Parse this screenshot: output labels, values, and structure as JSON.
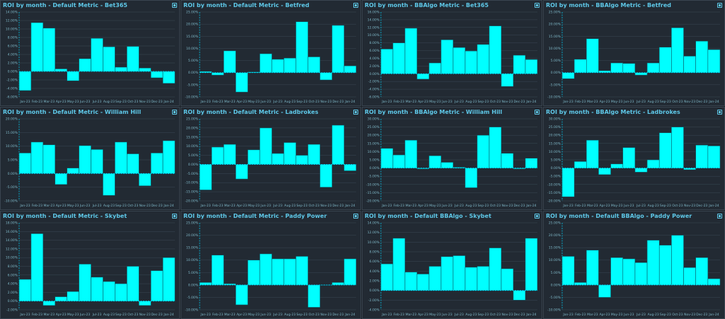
{
  "colors": {
    "bar_fill": "#00ffff",
    "bar_stroke": "#0a5d6a",
    "grid": "#3a4855",
    "zero_line": "#00d8ff",
    "title": "#5ec8e8",
    "tick": "#7fb8c8",
    "panel_bg": "#222a33",
    "page_bg": "#1b2128"
  },
  "chart_data": [
    {
      "type": "bar",
      "title": "ROI by month - Default Metric - Bet365",
      "categories": [
        "Jan-23",
        "Feb-23",
        "Mar-23",
        "Apr-23",
        "May-23",
        "Jun-23",
        "Jul-23",
        "Aug-23",
        "Sep-23",
        "Oct-23",
        "Nov-23",
        "Dec-23",
        "Jan-24"
      ],
      "values": [
        -4.5,
        11.5,
        10.2,
        0.6,
        -2.2,
        3.0,
        7.8,
        5.8,
        1.0,
        5.9,
        0.8,
        -1.5,
        -2.8
      ],
      "ylim": [
        -6,
        14
      ],
      "yticks": [
        "14.00%",
        "12.00%",
        "10.00%",
        "8.00%",
        "6.00%",
        "4.00%",
        "2.00%",
        "0.00%",
        "-2.00%",
        "-4.00%",
        "-6.00%"
      ]
    },
    {
      "type": "bar",
      "title": "ROI by month - Default Metric - Betfred",
      "categories": [
        "Jan-23",
        "Feb-23",
        "Mar-23",
        "Apr-23",
        "May-23",
        "Jun-23",
        "Jul-23",
        "Aug-23",
        "Sep-23",
        "Oct-23",
        "Nov-23",
        "Dec-23",
        "Jan-24"
      ],
      "values": [
        0.5,
        -1.0,
        9.0,
        -8.0,
        0.3,
        7.8,
        5.5,
        6.0,
        21.0,
        6.5,
        -3.0,
        19.5,
        2.8
      ],
      "ylim": [
        -10,
        25
      ],
      "yticks": [
        "25.00%",
        "20.00%",
        "15.00%",
        "10.00%",
        "5.00%",
        "0.00%",
        "-5.00%",
        "-10.00%"
      ]
    },
    {
      "type": "bar",
      "title": "ROI by month - BBAlgo Metric - Bet365",
      "categories": [
        "Jan-23",
        "Feb-23",
        "Mar-23",
        "Apr-23",
        "May-23",
        "Jun-23",
        "Jul-23",
        "Aug-23",
        "Sep-23",
        "Oct-23",
        "Nov-23",
        "Dec-23",
        "Jan-24"
      ],
      "values": [
        6.4,
        8.0,
        11.8,
        -1.4,
        2.8,
        8.8,
        6.8,
        5.9,
        7.6,
        12.4,
        -3.3,
        4.8,
        3.7
      ],
      "ylim": [
        -6,
        16
      ],
      "yticks": [
        "16.00%",
        "14.00%",
        "12.00%",
        "10.00%",
        "8.00%",
        "6.00%",
        "4.00%",
        "2.00%",
        "0.00%",
        "-2.00%",
        "-4.00%",
        "-6.00%"
      ]
    },
    {
      "type": "bar",
      "title": "ROI by month - BBAlgo Metric - Betfred",
      "categories": [
        "Jan-23",
        "Feb-23",
        "Mar-23",
        "Apr-23",
        "May-23",
        "Jun-23",
        "Jul-23",
        "Aug-23",
        "Sep-23",
        "Oct-23",
        "Nov-23",
        "Dec-23",
        "Jan-24"
      ],
      "values": [
        -2.5,
        5.5,
        14.0,
        0.8,
        4.0,
        3.8,
        -1.0,
        4.0,
        10.5,
        18.5,
        6.8,
        13.0,
        9.5
      ],
      "ylim": [
        -10,
        25
      ],
      "yticks": [
        "25.00%",
        "20.00%",
        "15.00%",
        "10.00%",
        "5.00%",
        "0.00%",
        "-5.00%",
        "-10.00%"
      ]
    },
    {
      "type": "bar",
      "title": "ROI by month - Default Metric - William Hill",
      "categories": [
        "Jan-23",
        "Feb-23",
        "Mar-23",
        "Apr-23",
        "May-23",
        "Jun-23",
        "Jul-23",
        "Aug-23",
        "Sep-23",
        "Oct-23",
        "Nov-23",
        "Dec-23",
        "Jan-24"
      ],
      "values": [
        7.5,
        11.5,
        10.5,
        -4.0,
        2.0,
        10.2,
        8.8,
        -8.0,
        11.5,
        7.2,
        -4.5,
        7.5,
        12.0
      ],
      "ylim": [
        -10,
        20
      ],
      "yticks": [
        "20.00%",
        "15.00%",
        "10.00%",
        "5.00%",
        "0.00%",
        "-5.00%",
        "-10.00%"
      ]
    },
    {
      "type": "bar",
      "title": "ROI by month - Default Metric - Ladbrokes",
      "categories": [
        "Jan-23",
        "Feb-23",
        "Mar-23",
        "Apr-23",
        "May-23",
        "Jun-23",
        "Jul-23",
        "Aug-23",
        "Sep-23",
        "Oct-23",
        "Nov-23",
        "Dec-23",
        "Jan-24"
      ],
      "values": [
        -14.0,
        9.5,
        11.0,
        -8.0,
        8.0,
        20.0,
        6.0,
        12.0,
        5.0,
        11.0,
        -12.5,
        21.5,
        -3.5
      ],
      "ylim": [
        -20,
        25
      ],
      "yticks": [
        "25.00%",
        "20.00%",
        "15.00%",
        "10.00%",
        "5.00%",
        "0.00%",
        "-5.00%",
        "-10.00%",
        "-15.00%",
        "-20.00%"
      ]
    },
    {
      "type": "bar",
      "title": "ROI by month - BBAlgo Metric - William Hill",
      "categories": [
        "Jan-23",
        "Feb-23",
        "Mar-23",
        "Apr-23",
        "May-23",
        "Jun-23",
        "Jul-23",
        "Aug-23",
        "Sep-23",
        "Oct-23",
        "Nov-23",
        "Dec-23",
        "Jan-24"
      ],
      "values": [
        12.0,
        8.0,
        17.0,
        -0.5,
        7.5,
        3.5,
        0.5,
        -12.0,
        20.0,
        25.0,
        9.0,
        -0.5,
        6.0
      ],
      "ylim": [
        -20,
        30
      ],
      "yticks": [
        "30.00%",
        "25.00%",
        "20.00%",
        "15.00%",
        "10.00%",
        "5.00%",
        "0.00%",
        "-5.00%",
        "-10.00%",
        "-15.00%",
        "-20.00%"
      ]
    },
    {
      "type": "bar",
      "title": "ROI by month - BBAlgo Metric - Ladbrokes",
      "categories": [
        "Jan-23",
        "Feb-23",
        "Mar-23",
        "Apr-23",
        "May-23",
        "Jun-23",
        "Jul-23",
        "Aug-23",
        "Sep-23",
        "Oct-23",
        "Nov-23",
        "Dec-23",
        "Jan-24"
      ],
      "values": [
        -17.5,
        4.0,
        17.0,
        -4.0,
        2.5,
        12.5,
        -2.5,
        5.0,
        21.5,
        25.0,
        -1.0,
        14.0,
        13.5
      ],
      "ylim": [
        -20,
        30
      ],
      "yticks": [
        "30.00%",
        "25.00%",
        "20.00%",
        "15.00%",
        "10.00%",
        "5.00%",
        "0.00%",
        "-5.00%",
        "-10.00%",
        "-15.00%",
        "-20.00%"
      ]
    },
    {
      "type": "bar",
      "title": "ROI by month - Default Metric - Skybet",
      "categories": [
        "Jan-23",
        "Feb-23",
        "Mar-23",
        "Apr-23",
        "May-23",
        "Jun-23",
        "Jul-23",
        "Aug-23",
        "Sep-23",
        "Oct-23",
        "Nov-23",
        "Dec-23",
        "Jan-24"
      ],
      "values": [
        5.0,
        15.5,
        -1.0,
        1.0,
        2.2,
        8.5,
        5.5,
        4.5,
        4.0,
        8.0,
        -1.0,
        7.0,
        10.0
      ],
      "ylim": [
        -2,
        18
      ],
      "yticks": [
        "18.00%",
        "16.00%",
        "14.00%",
        "12.00%",
        "10.00%",
        "8.00%",
        "6.00%",
        "4.00%",
        "2.00%",
        "0.00%",
        "-2.00%"
      ]
    },
    {
      "type": "bar",
      "title": "ROI by month - Default Metric - Paddy Power",
      "categories": [
        "Jan-23",
        "Feb-23",
        "Mar-23",
        "Apr-23",
        "May-23",
        "Jun-23",
        "Jul-23",
        "Aug-23",
        "Sep-23",
        "Oct-23",
        "Nov-23",
        "Dec-23",
        "Jan-24"
      ],
      "values": [
        1.0,
        12.0,
        0.5,
        -8.0,
        10.0,
        12.5,
        10.5,
        10.5,
        11.5,
        -9.0,
        0.0,
        1.0,
        10.5
      ],
      "ylim": [
        -10,
        25
      ],
      "yticks": [
        "25.00%",
        "20.00%",
        "15.00%",
        "10.00%",
        "5.00%",
        "0.00%",
        "-5.00%",
        "-10.00%"
      ]
    },
    {
      "type": "bar",
      "title": "ROI by month - Default BBAlgo - Skybet",
      "categories": [
        "Jan-23",
        "Feb-23",
        "Mar-23",
        "Apr-23",
        "May-23",
        "Jun-23",
        "Jul-23",
        "Aug-23",
        "Sep-23",
        "Oct-23",
        "Nov-23",
        "Dec-23",
        "Jan-24"
      ],
      "values": [
        5.5,
        10.8,
        3.8,
        3.4,
        5.0,
        7.0,
        7.2,
        4.8,
        5.0,
        8.8,
        4.5,
        -2.0,
        10.8
      ],
      "ylim": [
        -4,
        14
      ],
      "yticks": [
        "14.00%",
        "12.00%",
        "10.00%",
        "8.00%",
        "6.00%",
        "4.00%",
        "2.00%",
        "0.00%",
        "-2.00%",
        "-4.00%"
      ]
    },
    {
      "type": "bar",
      "title": "ROI by month - Default BBAlgo - Paddy Power",
      "categories": [
        "Jan-23",
        "Feb-23",
        "Mar-23",
        "Apr-23",
        "May-23",
        "Jun-23",
        "Jul-23",
        "Aug-23",
        "Sep-23",
        "Oct-23",
        "Nov-23",
        "Dec-23",
        "Jan-24"
      ],
      "values": [
        11.5,
        1.0,
        14.0,
        -5.0,
        11.0,
        10.5,
        9.0,
        18.0,
        16.0,
        20.0,
        7.0,
        11.0,
        2.5
      ],
      "ylim": [
        -10,
        25
      ],
      "yticks": [
        "25.00%",
        "20.00%",
        "15.00%",
        "10.00%",
        "5.00%",
        "0.00%",
        "-5.00%",
        "-10.00%"
      ]
    }
  ]
}
